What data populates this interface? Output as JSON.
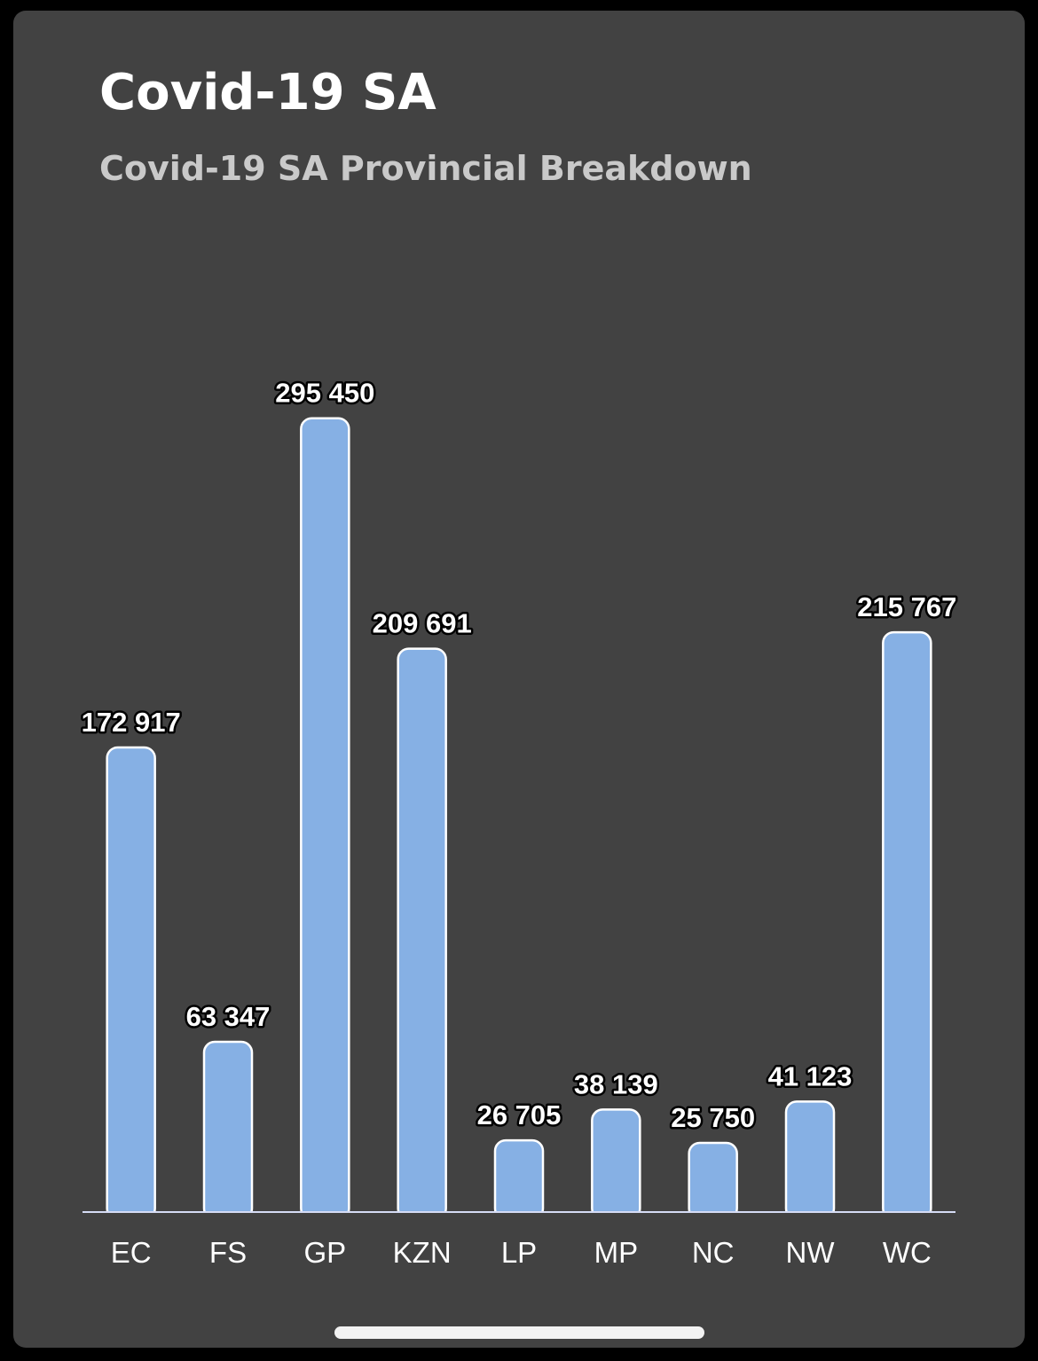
{
  "card": {
    "title": "Covid-19 SA",
    "subtitle": "Covid-19 SA Provincial Breakdown"
  },
  "chart_data": {
    "type": "bar",
    "title": "Covid-19 SA",
    "subtitle": "Covid-19 SA Provincial Breakdown",
    "categories": [
      "EC",
      "FS",
      "GP",
      "KZN",
      "LP",
      "MP",
      "NC",
      "NW",
      "WC"
    ],
    "values": [
      172917,
      63347,
      295450,
      209691,
      26705,
      38139,
      25750,
      41123,
      215767
    ],
    "value_labels": [
      "172 917",
      "63 347",
      "295 450",
      "209 691",
      "26 705",
      "38 139",
      "25 750",
      "41 123",
      "215 767"
    ],
    "xlabel": "",
    "ylabel": "",
    "ylim": [
      0,
      330000
    ],
    "grid": false,
    "legend": "none",
    "colors": {
      "bar_fill": "#86b0e4",
      "bar_stroke": "#ffffff",
      "axis_line": "#d6dcf5",
      "label_text": "#ffffff",
      "label_outline": "#000000"
    }
  }
}
